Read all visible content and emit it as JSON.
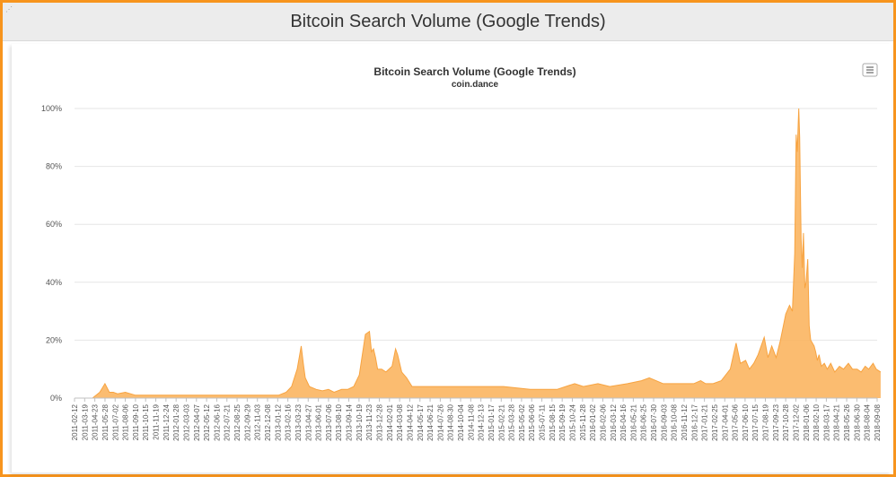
{
  "page": {
    "title": "Bitcoin Search Volume (Google Trends)"
  },
  "colors": {
    "series": "#fbb560",
    "series_line": "#f7a340",
    "border": "#f7941d"
  },
  "icons": {
    "export_menu": "hamburger-menu-icon"
  },
  "chart_data": {
    "type": "area",
    "title": "Bitcoin Search Volume (Google Trends)",
    "subtitle": "coin.dance",
    "xlabel": "",
    "ylabel": "",
    "ylim": [
      0,
      100
    ],
    "y_ticks": [
      "0%",
      "20%",
      "40%",
      "60%",
      "80%",
      "100%"
    ],
    "y_tick_values": [
      0,
      20,
      40,
      60,
      80,
      100
    ],
    "grid": true,
    "legend": "none",
    "x_tick_labels": [
      "2011-02-12",
      "2011-03-19",
      "2011-04-23",
      "2011-05-28",
      "2011-07-02",
      "2011-08-06",
      "2011-09-10",
      "2011-10-15",
      "2011-11-19",
      "2011-12-24",
      "2012-01-28",
      "2012-03-03",
      "2012-04-07",
      "2012-05-12",
      "2012-06-16",
      "2012-07-21",
      "2012-08-25",
      "2012-09-29",
      "2012-11-03",
      "2012-12-08",
      "2013-01-12",
      "2013-02-16",
      "2013-03-23",
      "2013-04-27",
      "2013-06-01",
      "2013-07-06",
      "2013-08-10",
      "2013-09-14",
      "2013-10-19",
      "2013-11-23",
      "2013-12-28",
      "2014-02-01",
      "2014-03-08",
      "2014-04-12",
      "2014-05-17",
      "2014-06-21",
      "2014-07-26",
      "2014-08-30",
      "2014-10-04",
      "2014-11-08",
      "2014-12-13",
      "2015-01-17",
      "2015-02-21",
      "2015-03-28",
      "2015-05-02",
      "2015-06-06",
      "2015-07-11",
      "2015-08-15",
      "2015-09-19",
      "2015-10-24",
      "2015-11-28",
      "2016-01-02",
      "2016-02-06",
      "2016-03-12",
      "2016-04-16",
      "2016-05-21",
      "2016-06-25",
      "2016-07-30",
      "2016-09-03",
      "2016-10-08",
      "2016-11-12",
      "2016-12-17",
      "2017-01-21",
      "2017-02-25",
      "2017-04-01",
      "2017-05-06",
      "2017-06-10",
      "2017-07-15",
      "2017-08-19",
      "2017-09-23",
      "2017-10-28",
      "2017-12-02",
      "2018-01-06",
      "2018-02-10",
      "2018-03-17",
      "2018-04-21",
      "2018-05-26",
      "2018-06-30",
      "2018-08-04",
      "2018-09-08"
    ],
    "series": [
      {
        "name": "",
        "x": [
          "2011-02-12",
          "2011-04-15",
          "2011-05-10",
          "2011-05-28",
          "2011-06-12",
          "2011-06-26",
          "2011-07-10",
          "2011-08-06",
          "2011-09-10",
          "2012-06-01",
          "2012-12-01",
          "2013-01-15",
          "2013-02-10",
          "2013-03-01",
          "2013-03-20",
          "2013-04-03",
          "2013-04-10",
          "2013-04-17",
          "2013-05-01",
          "2013-05-25",
          "2013-06-15",
          "2013-07-06",
          "2013-07-25",
          "2013-08-20",
          "2013-09-10",
          "2013-10-01",
          "2013-10-20",
          "2013-11-10",
          "2013-11-24",
          "2013-12-01",
          "2013-12-08",
          "2013-12-15",
          "2013-12-22",
          "2014-01-05",
          "2014-01-20",
          "2014-02-10",
          "2014-02-22",
          "2014-03-01",
          "2014-03-15",
          "2014-04-01",
          "2014-04-20",
          "2014-05-10",
          "2014-06-01",
          "2014-09-01",
          "2014-12-01",
          "2015-01-15",
          "2015-03-01",
          "2015-06-01",
          "2015-09-01",
          "2015-10-01",
          "2015-11-01",
          "2015-12-01",
          "2016-01-20",
          "2016-03-01",
          "2016-05-01",
          "2016-06-18",
          "2016-07-15",
          "2016-09-01",
          "2016-11-01",
          "2016-12-15",
          "2017-01-08",
          "2017-01-25",
          "2017-02-20",
          "2017-03-20",
          "2017-04-20",
          "2017-05-10",
          "2017-05-25",
          "2017-06-12",
          "2017-06-25",
          "2017-07-10",
          "2017-07-25",
          "2017-08-15",
          "2017-08-28",
          "2017-09-10",
          "2017-09-25",
          "2017-10-10",
          "2017-10-28",
          "2017-11-10",
          "2017-11-20",
          "2017-11-28",
          "2017-12-03",
          "2017-12-07",
          "2017-12-10",
          "2017-12-12",
          "2017-12-15",
          "2017-12-18",
          "2017-12-20",
          "2017-12-24",
          "2017-12-28",
          "2018-01-02",
          "2018-01-06",
          "2018-01-12",
          "2018-01-17",
          "2018-01-22",
          "2018-01-28",
          "2018-02-03",
          "2018-02-08",
          "2018-02-14",
          "2018-02-20",
          "2018-02-28",
          "2018-03-10",
          "2018-03-20",
          "2018-04-01",
          "2018-04-15",
          "2018-05-01",
          "2018-05-15",
          "2018-06-01",
          "2018-06-15",
          "2018-07-01",
          "2018-07-15",
          "2018-07-29",
          "2018-08-10",
          "2018-08-25",
          "2018-09-05",
          "2018-09-20"
        ],
        "values": [
          0,
          0,
          2,
          5,
          2,
          2,
          1.5,
          2,
          1,
          1,
          1,
          1,
          2,
          4,
          10,
          18,
          12,
          7,
          4,
          3,
          2.5,
          3,
          2,
          3,
          3,
          4,
          8,
          22,
          23,
          16,
          17,
          14,
          10,
          10,
          9,
          11,
          17,
          15,
          9,
          7,
          4,
          4,
          4,
          4,
          4,
          4,
          4,
          3,
          3,
          4,
          5,
          4,
          5,
          4,
          5,
          6,
          7,
          5,
          5,
          5,
          6,
          5,
          5,
          6,
          10,
          19,
          12,
          13,
          10,
          12,
          15,
          21,
          14,
          18,
          14,
          20,
          29,
          32,
          30,
          50,
          91,
          85,
          95,
          100,
          90,
          70,
          55,
          45,
          57,
          38,
          40,
          48,
          25,
          20,
          19,
          18,
          16,
          13,
          15,
          11,
          12,
          10,
          12,
          9,
          11,
          10,
          12,
          10,
          10,
          9,
          11,
          10,
          12,
          10,
          9
        ]
      }
    ]
  }
}
